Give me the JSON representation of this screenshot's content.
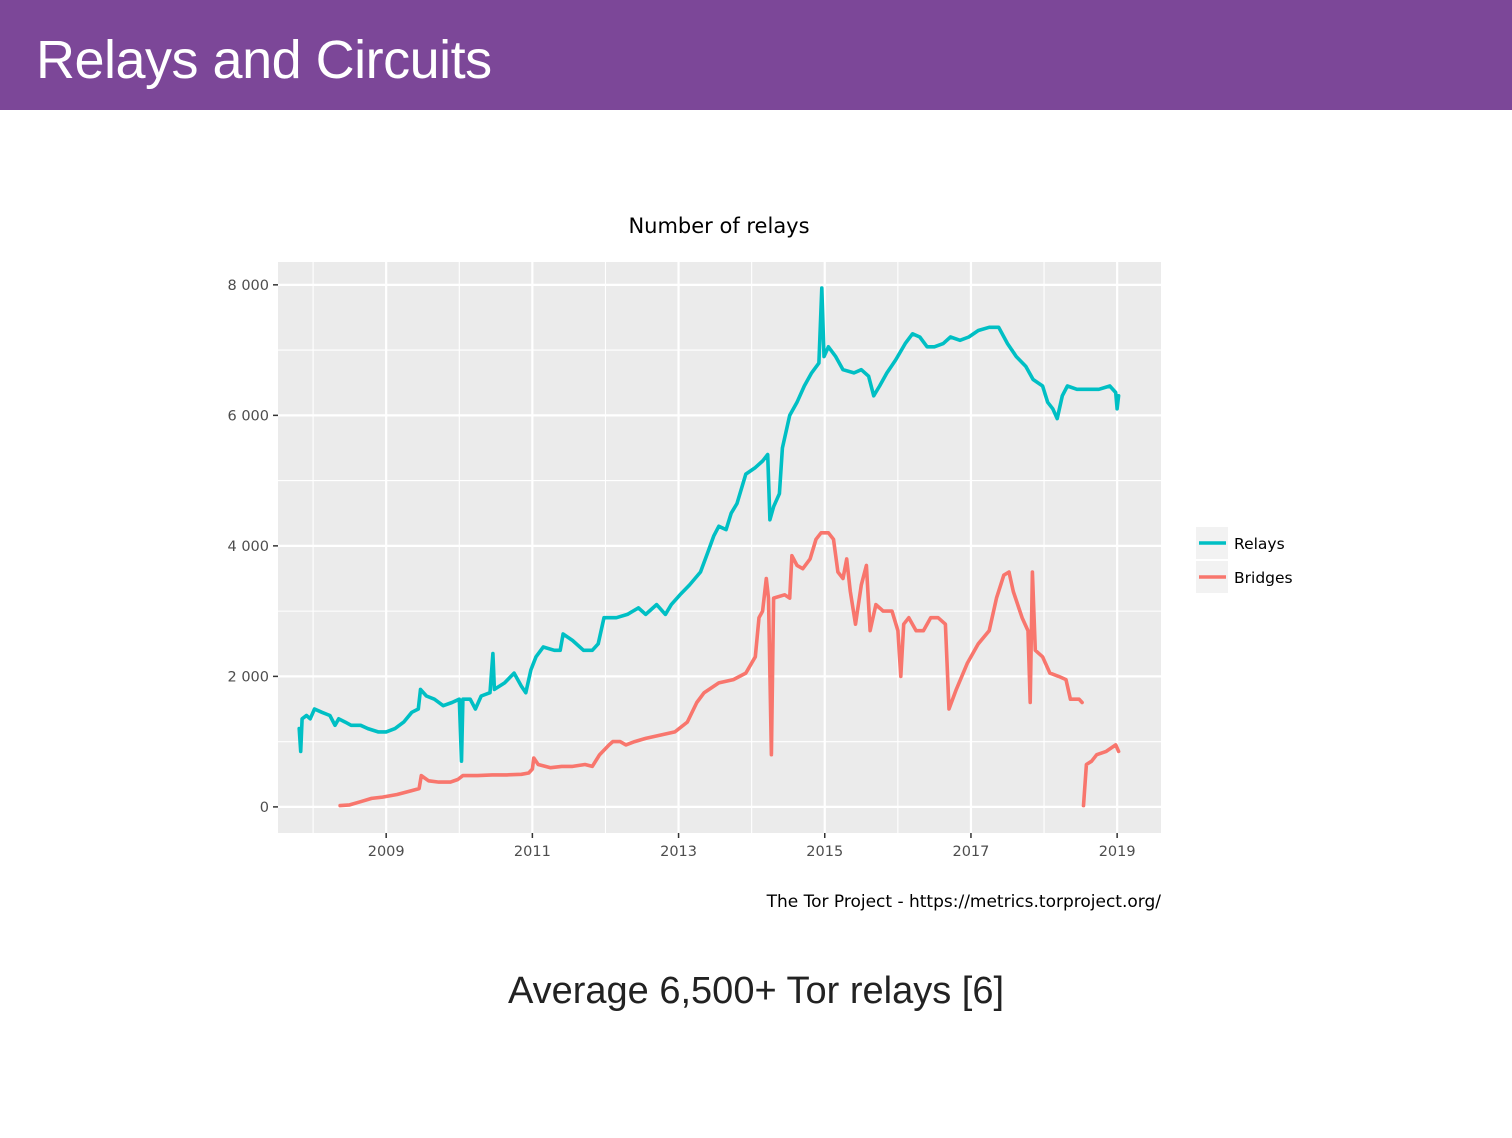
{
  "slide": {
    "title": "Relays and Circuits",
    "caption": "Average 6,500+ Tor relays [6]"
  },
  "chart_data": {
    "type": "line",
    "title": "Number of relays",
    "xlabel": "",
    "ylabel": "",
    "source_note": "The Tor Project - https://metrics.torproject.org/",
    "xlim": [
      2007.52,
      2019.6
    ],
    "ylim": [
      -400,
      8350
    ],
    "x_ticks": [
      2009,
      2011,
      2013,
      2015,
      2017,
      2019
    ],
    "x_tick_labels": [
      "2009",
      "2011",
      "2013",
      "2015",
      "2017",
      "2019"
    ],
    "y_ticks": [
      0,
      2000,
      4000,
      6000,
      8000
    ],
    "y_tick_labels": [
      "0",
      "2 000",
      "4 000",
      "6 000",
      "8 000"
    ],
    "grid": true,
    "legend": {
      "position": "right",
      "entries": [
        "Relays",
        "Bridges"
      ]
    },
    "series": [
      {
        "name": "Relays",
        "color": "#00bfc4",
        "points": [
          [
            2007.81,
            1200
          ],
          [
            2007.83,
            850
          ],
          [
            2007.85,
            1350
          ],
          [
            2007.91,
            1400
          ],
          [
            2007.96,
            1350
          ],
          [
            2008.02,
            1500
          ],
          [
            2008.12,
            1450
          ],
          [
            2008.23,
            1400
          ],
          [
            2008.3,
            1250
          ],
          [
            2008.35,
            1350
          ],
          [
            2008.44,
            1300
          ],
          [
            2008.52,
            1250
          ],
          [
            2008.65,
            1250
          ],
          [
            2008.75,
            1200
          ],
          [
            2008.89,
            1150
          ],
          [
            2009.0,
            1150
          ],
          [
            2009.12,
            1200
          ],
          [
            2009.24,
            1300
          ],
          [
            2009.35,
            1450
          ],
          [
            2009.44,
            1500
          ],
          [
            2009.47,
            1800
          ],
          [
            2009.55,
            1700
          ],
          [
            2009.66,
            1650
          ],
          [
            2009.78,
            1550
          ],
          [
            2009.9,
            1600
          ],
          [
            2010.0,
            1650
          ],
          [
            2010.03,
            700
          ],
          [
            2010.05,
            1650
          ],
          [
            2010.15,
            1650
          ],
          [
            2010.22,
            1500
          ],
          [
            2010.3,
            1700
          ],
          [
            2010.42,
            1750
          ],
          [
            2010.46,
            2350
          ],
          [
            2010.48,
            1800
          ],
          [
            2010.62,
            1900
          ],
          [
            2010.75,
            2050
          ],
          [
            2010.85,
            1850
          ],
          [
            2010.91,
            1750
          ],
          [
            2010.98,
            2100
          ],
          [
            2011.05,
            2300
          ],
          [
            2011.15,
            2450
          ],
          [
            2011.3,
            2400
          ],
          [
            2011.38,
            2400
          ],
          [
            2011.42,
            2650
          ],
          [
            2011.55,
            2550
          ],
          [
            2011.7,
            2400
          ],
          [
            2011.82,
            2400
          ],
          [
            2011.9,
            2500
          ],
          [
            2011.98,
            2900
          ],
          [
            2012.15,
            2900
          ],
          [
            2012.3,
            2950
          ],
          [
            2012.45,
            3050
          ],
          [
            2012.55,
            2950
          ],
          [
            2012.7,
            3100
          ],
          [
            2012.82,
            2950
          ],
          [
            2012.9,
            3100
          ],
          [
            2013.02,
            3250
          ],
          [
            2013.15,
            3400
          ],
          [
            2013.3,
            3600
          ],
          [
            2013.4,
            3900
          ],
          [
            2013.48,
            4150
          ],
          [
            2013.55,
            4300
          ],
          [
            2013.65,
            4250
          ],
          [
            2013.72,
            4500
          ],
          [
            2013.8,
            4650
          ],
          [
            2013.92,
            5100
          ],
          [
            2014.05,
            5200
          ],
          [
            2014.15,
            5300
          ],
          [
            2014.22,
            5400
          ],
          [
            2014.25,
            4400
          ],
          [
            2014.3,
            4600
          ],
          [
            2014.38,
            4800
          ],
          [
            2014.42,
            5500
          ],
          [
            2014.52,
            6000
          ],
          [
            2014.62,
            6200
          ],
          [
            2014.72,
            6450
          ],
          [
            2014.82,
            6650
          ],
          [
            2014.92,
            6800
          ],
          [
            2014.96,
            7950
          ],
          [
            2014.99,
            6900
          ],
          [
            2015.05,
            7050
          ],
          [
            2015.15,
            6900
          ],
          [
            2015.25,
            6700
          ],
          [
            2015.4,
            6650
          ],
          [
            2015.5,
            6700
          ],
          [
            2015.6,
            6600
          ],
          [
            2015.67,
            6300
          ],
          [
            2015.75,
            6450
          ],
          [
            2015.85,
            6650
          ],
          [
            2015.97,
            6850
          ],
          [
            2016.1,
            7100
          ],
          [
            2016.2,
            7250
          ],
          [
            2016.3,
            7200
          ],
          [
            2016.4,
            7050
          ],
          [
            2016.5,
            7050
          ],
          [
            2016.62,
            7100
          ],
          [
            2016.72,
            7200
          ],
          [
            2016.85,
            7150
          ],
          [
            2016.97,
            7200
          ],
          [
            2017.1,
            7300
          ],
          [
            2017.25,
            7350
          ],
          [
            2017.38,
            7350
          ],
          [
            2017.5,
            7100
          ],
          [
            2017.62,
            6900
          ],
          [
            2017.75,
            6750
          ],
          [
            2017.85,
            6550
          ],
          [
            2017.98,
            6450
          ],
          [
            2018.05,
            6200
          ],
          [
            2018.12,
            6100
          ],
          [
            2018.18,
            5950
          ],
          [
            2018.25,
            6300
          ],
          [
            2018.32,
            6450
          ],
          [
            2018.45,
            6400
          ],
          [
            2018.6,
            6400
          ],
          [
            2018.75,
            6400
          ],
          [
            2018.9,
            6450
          ],
          [
            2018.98,
            6350
          ],
          [
            2019.0,
            6100
          ],
          [
            2019.02,
            6300
          ]
        ]
      },
      {
        "name": "Bridges",
        "color": "#f8766d",
        "points": [
          [
            2008.37,
            20
          ],
          [
            2008.5,
            30
          ],
          [
            2008.65,
            80
          ],
          [
            2008.8,
            130
          ],
          [
            2008.95,
            150
          ],
          [
            2009.15,
            190
          ],
          [
            2009.35,
            250
          ],
          [
            2009.45,
            280
          ],
          [
            2009.48,
            480
          ],
          [
            2009.58,
            400
          ],
          [
            2009.72,
            380
          ],
          [
            2009.88,
            380
          ],
          [
            2009.98,
            420
          ],
          [
            2010.05,
            480
          ],
          [
            2010.25,
            480
          ],
          [
            2010.45,
            490
          ],
          [
            2010.65,
            490
          ],
          [
            2010.85,
            500
          ],
          [
            2010.95,
            520
          ],
          [
            2011.0,
            580
          ],
          [
            2011.02,
            750
          ],
          [
            2011.08,
            650
          ],
          [
            2011.25,
            600
          ],
          [
            2011.4,
            620
          ],
          [
            2011.55,
            620
          ],
          [
            2011.72,
            650
          ],
          [
            2011.82,
            620
          ],
          [
            2011.92,
            800
          ],
          [
            2012.05,
            950
          ],
          [
            2012.1,
            1000
          ],
          [
            2012.2,
            1000
          ],
          [
            2012.28,
            950
          ],
          [
            2012.4,
            1000
          ],
          [
            2012.55,
            1050
          ],
          [
            2012.75,
            1100
          ],
          [
            2012.95,
            1150
          ],
          [
            2013.12,
            1300
          ],
          [
            2013.25,
            1600
          ],
          [
            2013.35,
            1750
          ],
          [
            2013.55,
            1900
          ],
          [
            2013.75,
            1950
          ],
          [
            2013.92,
            2050
          ],
          [
            2014.05,
            2300
          ],
          [
            2014.1,
            2900
          ],
          [
            2014.15,
            3000
          ],
          [
            2014.2,
            3500
          ],
          [
            2014.23,
            3200
          ],
          [
            2014.27,
            800
          ],
          [
            2014.3,
            3200
          ],
          [
            2014.45,
            3250
          ],
          [
            2014.52,
            3200
          ],
          [
            2014.55,
            3850
          ],
          [
            2014.62,
            3700
          ],
          [
            2014.7,
            3650
          ],
          [
            2014.8,
            3800
          ],
          [
            2014.88,
            4100
          ],
          [
            2014.95,
            4200
          ],
          [
            2015.05,
            4200
          ],
          [
            2015.12,
            4100
          ],
          [
            2015.18,
            3600
          ],
          [
            2015.25,
            3500
          ],
          [
            2015.3,
            3800
          ],
          [
            2015.35,
            3300
          ],
          [
            2015.42,
            2800
          ],
          [
            2015.5,
            3400
          ],
          [
            2015.57,
            3700
          ],
          [
            2015.62,
            2700
          ],
          [
            2015.7,
            3100
          ],
          [
            2015.8,
            3000
          ],
          [
            2015.92,
            3000
          ],
          [
            2016.0,
            2700
          ],
          [
            2016.04,
            2000
          ],
          [
            2016.08,
            2800
          ],
          [
            2016.15,
            2900
          ],
          [
            2016.25,
            2700
          ],
          [
            2016.35,
            2700
          ],
          [
            2016.45,
            2900
          ],
          [
            2016.55,
            2900
          ],
          [
            2016.65,
            2800
          ],
          [
            2016.7,
            1500
          ],
          [
            2016.8,
            1800
          ],
          [
            2016.95,
            2200
          ],
          [
            2017.1,
            2500
          ],
          [
            2017.25,
            2700
          ],
          [
            2017.35,
            3200
          ],
          [
            2017.45,
            3550
          ],
          [
            2017.52,
            3600
          ],
          [
            2017.58,
            3300
          ],
          [
            2017.7,
            2900
          ],
          [
            2017.78,
            2700
          ],
          [
            2017.81,
            1600
          ],
          [
            2017.84,
            3600
          ],
          [
            2017.88,
            2400
          ],
          [
            2017.98,
            2300
          ],
          [
            2018.08,
            2050
          ],
          [
            2018.2,
            2000
          ],
          [
            2018.3,
            1950
          ],
          [
            2018.36,
            1650
          ],
          [
            2018.48,
            1650
          ],
          [
            2018.52,
            1600
          ],
          null,
          [
            2018.54,
            20
          ],
          [
            2018.58,
            650
          ],
          [
            2018.65,
            700
          ],
          [
            2018.72,
            800
          ],
          [
            2018.85,
            850
          ],
          [
            2018.98,
            950
          ],
          [
            2019.02,
            850
          ]
        ]
      }
    ]
  }
}
